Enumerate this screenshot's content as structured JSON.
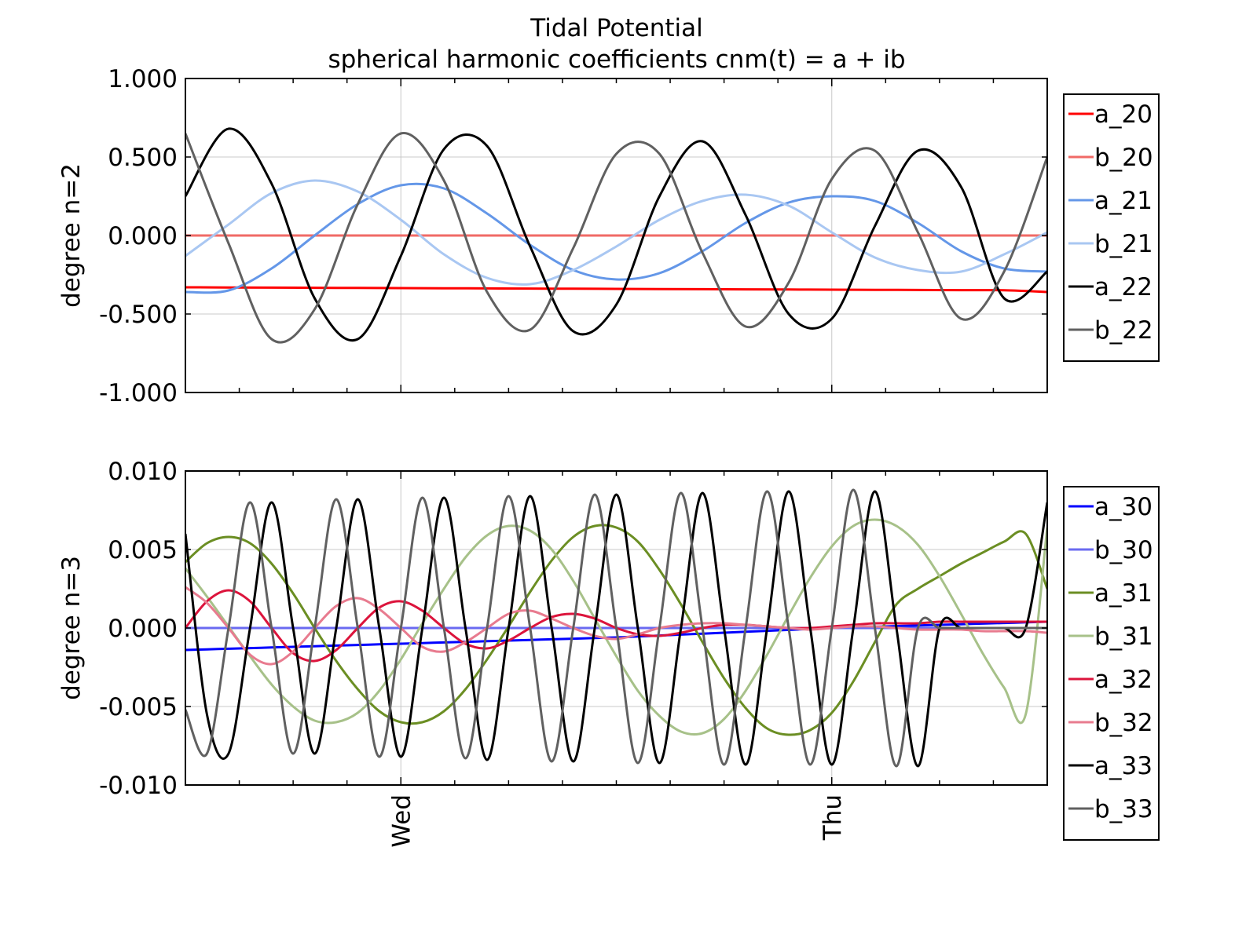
{
  "title": "Tidal Potential",
  "subtitle": "spherical harmonic coefficients cnm(t) = a + ib",
  "chart_data": [
    {
      "type": "line",
      "ylabel": "degree n=2",
      "xlabel": "",
      "xlim": [
        0,
        2.0
      ],
      "ylim": [
        -1.0,
        1.0
      ],
      "yticks": [
        "1.000",
        "0.500",
        "0.000",
        "-0.500",
        "-1.000"
      ],
      "ytick_values": [
        1.0,
        0.5,
        0.0,
        -0.5,
        -1.0
      ],
      "xticks": [
        {
          "x": 0.5,
          "label": "Wed"
        },
        {
          "x": 1.5,
          "label": "Thu"
        }
      ],
      "grid": true,
      "legend": "right-outside",
      "sample_times": [
        0.0,
        0.1,
        0.2,
        0.3,
        0.4,
        0.5,
        0.6,
        0.7,
        0.8,
        0.9,
        1.0,
        1.1,
        1.2,
        1.3,
        1.4,
        1.5,
        1.6,
        1.7,
        1.8,
        1.9,
        2.0
      ],
      "series": [
        {
          "name": "a_20",
          "color": "#ff0000",
          "values": [
            -0.33,
            -0.331,
            -0.332,
            -0.333,
            -0.334,
            -0.335,
            -0.336,
            -0.337,
            -0.338,
            -0.339,
            -0.34,
            -0.341,
            -0.342,
            -0.343,
            -0.344,
            -0.345,
            -0.346,
            -0.347,
            -0.348,
            -0.349,
            -0.36
          ]
        },
        {
          "name": "b_20",
          "color": "#f06a66",
          "values": [
            0.0,
            0.0,
            0.0,
            0.0,
            0.0,
            0.0,
            0.0,
            0.0,
            0.0,
            0.0,
            0.0,
            0.0,
            0.0,
            0.0,
            0.0,
            0.0,
            0.0,
            0.0,
            0.0,
            0.0,
            0.0
          ]
        },
        {
          "name": "a_21",
          "color": "#6497e8",
          "values": [
            -0.36,
            -0.35,
            -0.21,
            0.0,
            0.2,
            0.32,
            0.3,
            0.14,
            -0.06,
            -0.22,
            -0.28,
            -0.24,
            -0.1,
            0.08,
            0.21,
            0.25,
            0.22,
            0.08,
            -0.1,
            -0.21,
            -0.23
          ]
        },
        {
          "name": "b_21",
          "color": "#a9c7f2",
          "values": [
            -0.13,
            0.07,
            0.27,
            0.35,
            0.28,
            0.1,
            -0.12,
            -0.27,
            -0.31,
            -0.22,
            -0.07,
            0.1,
            0.22,
            0.26,
            0.19,
            0.02,
            -0.14,
            -0.22,
            -0.23,
            -0.12,
            0.02
          ]
        },
        {
          "name": "a_22",
          "color": "#000000",
          "values": [
            0.25,
            0.68,
            0.33,
            -0.4,
            -0.66,
            -0.13,
            0.55,
            0.57,
            -0.07,
            -0.61,
            -0.44,
            0.25,
            0.6,
            0.13,
            -0.5,
            -0.53,
            0.06,
            0.54,
            0.31,
            -0.4,
            -0.23
          ]
        },
        {
          "name": "b_22",
          "color": "#606060",
          "values": [
            0.65,
            -0.05,
            -0.66,
            -0.47,
            0.2,
            0.65,
            0.35,
            -0.36,
            -0.6,
            -0.08,
            0.52,
            0.52,
            -0.11,
            -0.58,
            -0.3,
            0.36,
            0.54,
            0.02,
            -0.53,
            -0.23,
            0.5
          ]
        }
      ]
    },
    {
      "type": "line",
      "ylabel": "degree n=3",
      "xlabel": "",
      "xlim": [
        0,
        2.0
      ],
      "ylim": [
        -0.01,
        0.01
      ],
      "yticks": [
        "0.010",
        "0.005",
        "0.000",
        "-0.005",
        "-0.010"
      ],
      "ytick_values": [
        0.01,
        0.005,
        0.0,
        -0.005,
        -0.01
      ],
      "xticks": [
        {
          "x": 0.5,
          "label": "Wed"
        },
        {
          "x": 1.5,
          "label": "Thu"
        }
      ],
      "grid": true,
      "legend": "right-outside",
      "sample_times": [
        0.0,
        0.05,
        0.1,
        0.15,
        0.2,
        0.25,
        0.3,
        0.35,
        0.4,
        0.45,
        0.5,
        0.55,
        0.6,
        0.65,
        0.7,
        0.75,
        0.8,
        0.85,
        0.9,
        0.95,
        1.0,
        1.05,
        1.1,
        1.15,
        1.2,
        1.25,
        1.3,
        1.35,
        1.4,
        1.45,
        1.5,
        1.55,
        1.6,
        1.65,
        1.7,
        1.75,
        1.8,
        1.85,
        1.9,
        1.95,
        2.0
      ],
      "series": [
        {
          "name": "a_30",
          "color": "#0000ff",
          "values": [
            -0.0014,
            -0.00136,
            -0.00132,
            -0.00128,
            -0.00124,
            -0.0012,
            -0.00116,
            -0.00112,
            -0.00108,
            -0.00104,
            -0.001,
            -0.00096,
            -0.00092,
            -0.00088,
            -0.00084,
            -0.0008,
            -0.00076,
            -0.00072,
            -0.00068,
            -0.00064,
            -0.0006,
            -0.00054,
            -0.00048,
            -0.00042,
            -0.00036,
            -0.0003,
            -0.00024,
            -0.00018,
            -0.00012,
            -6e-05,
            0.0,
            4e-05,
            8e-05,
            0.00012,
            0.00016,
            0.0002,
            0.00024,
            0.00028,
            0.00032,
            0.00036,
            0.0004
          ]
        },
        {
          "name": "b_30",
          "color": "#6a6af0",
          "values": [
            0.0,
            0.0,
            0.0,
            0.0,
            0.0,
            0.0,
            0.0,
            0.0,
            0.0,
            0.0,
            0.0,
            0.0,
            0.0,
            0.0,
            0.0,
            0.0,
            0.0,
            0.0,
            0.0,
            0.0,
            0.0,
            0.0,
            0.0,
            0.0,
            0.0,
            0.0,
            0.0,
            0.0,
            0.0,
            0.0,
            0.0,
            0.0,
            0.0,
            0.0,
            0.0,
            0.0,
            0.0,
            0.0,
            0.0,
            0.0,
            0.0
          ]
        },
        {
          "name": "a_31",
          "color": "#6b8e23",
          "values": [
            0.0042,
            0.0054,
            0.0058,
            0.0054,
            0.0041,
            0.0022,
            0.0,
            -0.0021,
            -0.0039,
            -0.0053,
            -0.006,
            -0.006,
            -0.0053,
            -0.0039,
            -0.002,
            0.0001,
            0.0023,
            0.0043,
            0.0058,
            0.0065,
            0.0064,
            0.0055,
            0.0037,
            0.0015,
            -0.0009,
            -0.0032,
            -0.0051,
            -0.0064,
            -0.0068,
            -0.0065,
            -0.0054,
            -0.0034,
            -0.0009,
            0.0015,
            0.0025,
            0.0033,
            0.0041,
            0.0048,
            0.0055,
            0.006,
            0.0025
          ]
        },
        {
          "name": "b_31",
          "color": "#a7c189",
          "values": [
            0.0038,
            0.002,
            0.0001,
            -0.0018,
            -0.0036,
            -0.005,
            -0.0059,
            -0.006,
            -0.0054,
            -0.004,
            -0.002,
            0.0003,
            0.0025,
            0.0045,
            0.0059,
            0.0065,
            0.0062,
            0.005,
            0.003,
            0.0006,
            -0.0018,
            -0.004,
            -0.0056,
            -0.0066,
            -0.0067,
            -0.0058,
            -0.004,
            -0.0017,
            0.0008,
            0.0032,
            0.0052,
            0.0065,
            0.0069,
            0.0065,
            0.0053,
            0.0033,
            0.0009,
            -0.0016,
            -0.0038,
            -0.0055,
            0.0064
          ]
        },
        {
          "name": "a_32",
          "color": "#dc143c",
          "values": [
            0.0,
            0.0017,
            0.0024,
            0.0017,
            0.0,
            -0.0016,
            -0.0021,
            -0.0014,
            0.0,
            0.0013,
            0.0017,
            0.0011,
            0.0,
            -0.001,
            -0.0013,
            -0.0008,
            0.0,
            0.0007,
            0.0009,
            0.0006,
            0.0,
            -0.0004,
            -0.0005,
            -0.0003,
            0.0,
            0.0002,
            0.0002,
            0.0001,
            0.0,
            0.0,
            0.0001,
            0.0002,
            0.0003,
            0.0003,
            0.0003,
            0.0004,
            0.0004,
            0.0004,
            0.0004,
            0.0004,
            0.0004
          ]
        },
        {
          "name": "b_32",
          "color": "#e87b8f",
          "values": [
            0.0026,
            0.0016,
            0.0,
            -0.0017,
            -0.0023,
            -0.0015,
            0.0,
            0.0014,
            0.0019,
            0.0012,
            0.0,
            -0.0012,
            -0.0015,
            -0.0009,
            0.0,
            0.0009,
            0.0011,
            0.0006,
            0.0,
            -0.0005,
            -0.0007,
            -0.0004,
            0.0,
            0.0002,
            0.0003,
            0.0003,
            0.0002,
            0.0001,
            0.0,
            -0.0001,
            0.0,
            0.0001,
            0.0001,
            0.0,
            -0.0001,
            -0.0001,
            -0.0001,
            -0.0002,
            -0.0002,
            -0.0002,
            -0.0003
          ]
        },
        {
          "name": "a_33",
          "color": "#000000",
          "values": [
            0.006,
            -0.0055,
            -0.008,
            0.0,
            0.008,
            0.0,
            -0.008,
            0.0,
            0.0082,
            0.0,
            -0.0082,
            0.0,
            0.0083,
            0.0,
            -0.0084,
            0.0,
            0.0084,
            0.0,
            -0.0085,
            0.0,
            0.0085,
            0.0,
            -0.0086,
            0.0,
            0.0086,
            0.0,
            -0.0087,
            0.0,
            0.0087,
            0.0,
            -0.0087,
            0.0,
            0.0087,
            0.0,
            -0.0088,
            0.0,
            0.0,
            0.0,
            0.0,
            0.0,
            0.008
          ]
        },
        {
          "name": "b_33",
          "color": "#606060",
          "values": [
            -0.0052,
            -0.008,
            0.0,
            0.008,
            0.0,
            -0.008,
            0.0,
            0.0082,
            0.0,
            -0.0082,
            0.0,
            0.0083,
            0.0,
            -0.0083,
            0.0,
            0.0084,
            0.0,
            -0.0085,
            0.0,
            0.0085,
            0.0,
            -0.0086,
            0.0,
            0.0086,
            0.0,
            -0.0087,
            0.0,
            0.0087,
            0.0,
            -0.0087,
            0.0,
            0.0088,
            0.0,
            -0.0088,
            0.0,
            0.0,
            0.0,
            0.0,
            0.0,
            0.0,
            0.0
          ]
        }
      ]
    }
  ]
}
